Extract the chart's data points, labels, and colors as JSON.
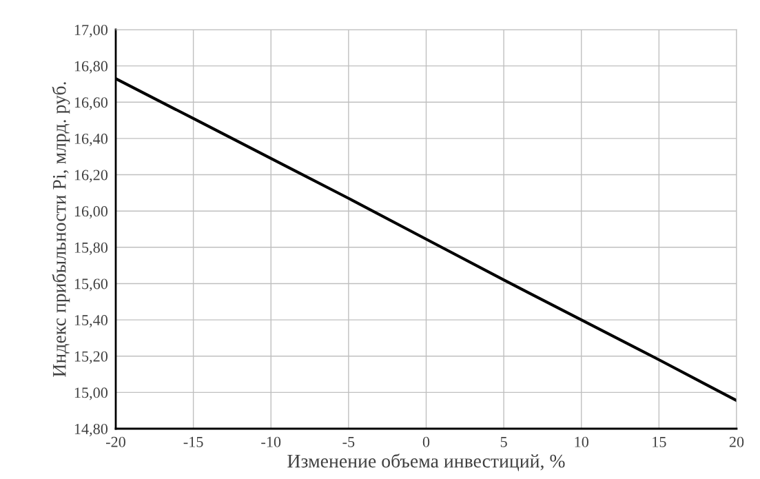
{
  "chart_data": {
    "type": "line",
    "xlabel": "Изменение объема инвестиций, %",
    "ylabel": "Индекс прибыльности Pi, млрд. руб.",
    "x": [
      -20,
      -15,
      -10,
      -5,
      0,
      5,
      10,
      15,
      20
    ],
    "series": [
      {
        "color": "#000000",
        "values": [
          16.73,
          16.51,
          16.29,
          16.07,
          15.845,
          15.62,
          15.4,
          15.18,
          14.955
        ]
      }
    ],
    "xlim": [
      -20,
      20
    ],
    "xticks": [
      -20,
      -15,
      -10,
      -5,
      0,
      5,
      10,
      15,
      20
    ],
    "ylim": [
      14.8,
      17.0
    ],
    "yticks": [
      {
        "value": 14.8,
        "label": "14,80"
      },
      {
        "value": 15.0,
        "label": "15,00"
      },
      {
        "value": 15.2,
        "label": "15,20"
      },
      {
        "value": 15.4,
        "label": "15,40"
      },
      {
        "value": 15.6,
        "label": "15,60"
      },
      {
        "value": 15.8,
        "label": "15,80"
      },
      {
        "value": 16.0,
        "label": "16,00"
      },
      {
        "value": 16.2,
        "label": "16,20"
      },
      {
        "value": 16.4,
        "label": "16,40"
      },
      {
        "value": 16.6,
        "label": "16,60"
      },
      {
        "value": 16.8,
        "label": "16,80"
      },
      {
        "value": 17.0,
        "label": "17,00"
      }
    ],
    "grid": true,
    "marker": "none",
    "line_style": "solid"
  }
}
